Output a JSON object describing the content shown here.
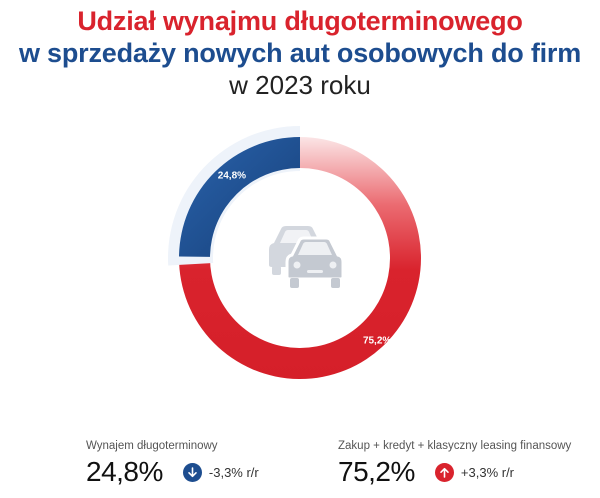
{
  "header": {
    "line1": "Udział wynajmu długoterminowego",
    "line2": "w sprzedaży nowych aut osobowych do firm",
    "line3": "w 2023 roku"
  },
  "chart_data": {
    "type": "pie",
    "variant": "donut",
    "title": "Udział wynajmu długoterminowego w sprzedaży nowych aut osobowych do firm w 2023 roku",
    "slices": [
      {
        "label": "Wynajem długoterminowy",
        "value": 24.8,
        "display": "24,8%",
        "color": "#1d4d8f"
      },
      {
        "label": "Zakup + kredyt + klasyczny leasing finansowy",
        "value": 75.2,
        "display": "75,2%",
        "color": "#d9232d"
      }
    ],
    "legend_placement": "bottom"
  },
  "center_icon": "cars-icon",
  "legend": [
    {
      "name": "Wynajem długoterminowy",
      "value": "24,8%",
      "change": "-3,3% r/r",
      "direction": "down",
      "icon": "arrow-down-icon",
      "color": "#1d4d8f"
    },
    {
      "name": "Zakup + kredyt + klasyczny leasing finansowy",
      "value": "75,2%",
      "change": "+3,3% r/r",
      "direction": "up",
      "icon": "arrow-up-icon",
      "color": "#d9232d"
    }
  ]
}
